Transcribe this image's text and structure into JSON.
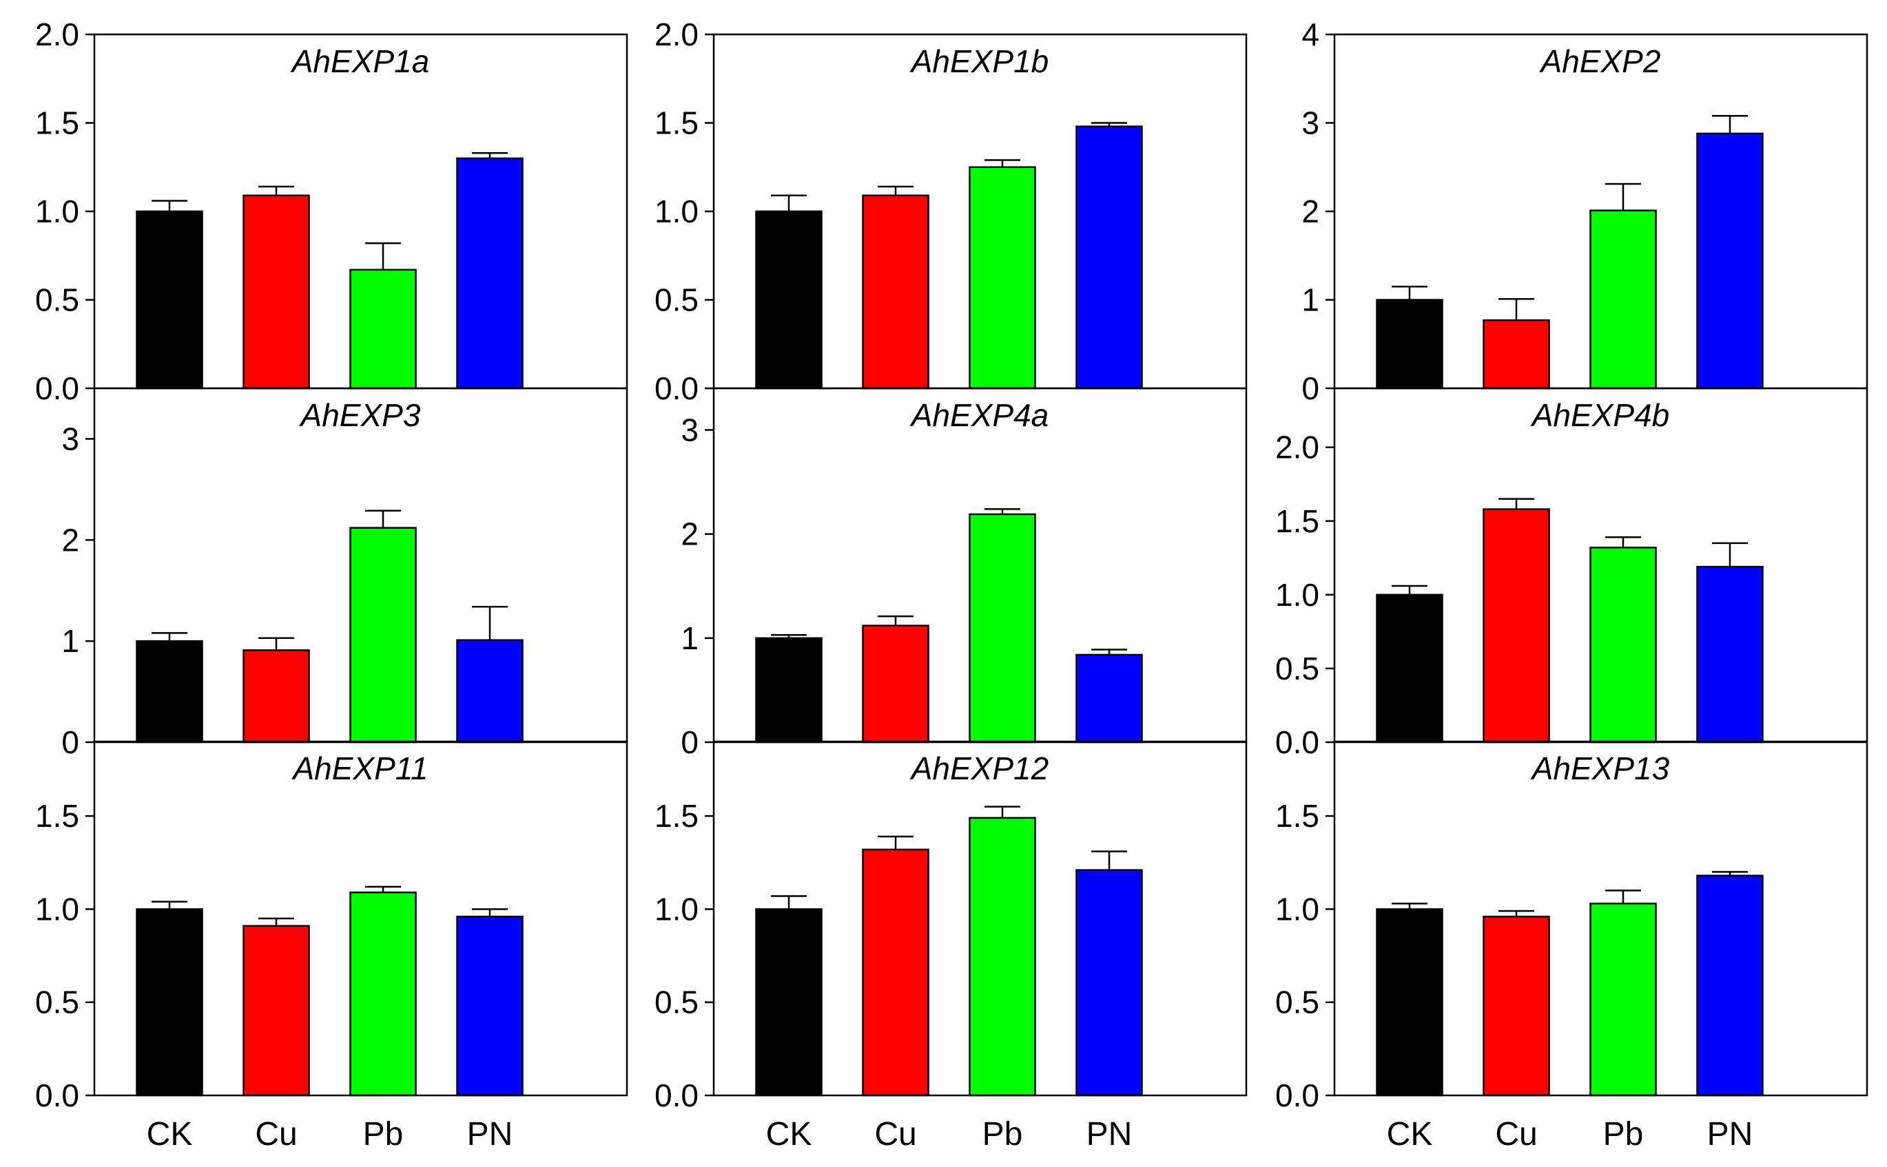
{
  "chart_data": [
    {
      "type": "bar",
      "title": "AhEXP1a",
      "categories": [
        "CK",
        "Cu",
        "Pb",
        "PN"
      ],
      "values": [
        1.0,
        1.09,
        0.67,
        1.3
      ],
      "errors": [
        0.06,
        0.05,
        0.15,
        0.03
      ],
      "ylim": [
        0,
        2.0
      ],
      "yticks": [
        0,
        0.5,
        1.0,
        1.5,
        2.0
      ],
      "ytick_labels": [
        "0.0",
        "0.5",
        "1.0",
        "1.5",
        "2.0"
      ]
    },
    {
      "type": "bar",
      "title": "AhEXP1b",
      "categories": [
        "CK",
        "Cu",
        "Pb",
        "PN"
      ],
      "values": [
        1.0,
        1.09,
        1.25,
        1.48
      ],
      "errors": [
        0.09,
        0.05,
        0.04,
        0.02
      ],
      "ylim": [
        0,
        2.0
      ],
      "yticks": [
        0,
        0.5,
        1.0,
        1.5,
        2.0
      ],
      "ytick_labels": [
        "0.0",
        "0.5",
        "1.0",
        "1.5",
        "2.0"
      ]
    },
    {
      "type": "bar",
      "title": "AhEXP2",
      "categories": [
        "CK",
        "Cu",
        "Pb",
        "PN"
      ],
      "values": [
        1.0,
        0.77,
        2.01,
        2.88
      ],
      "errors": [
        0.15,
        0.24,
        0.3,
        0.2
      ],
      "ylim": [
        0,
        4
      ],
      "yticks": [
        0,
        1,
        2,
        3,
        4
      ],
      "ytick_labels": [
        "0",
        "1",
        "2",
        "3",
        "4"
      ]
    },
    {
      "type": "bar",
      "title": "AhEXP3",
      "categories": [
        "CK",
        "Cu",
        "Pb",
        "PN"
      ],
      "values": [
        1.0,
        0.91,
        2.12,
        1.01
      ],
      "errors": [
        0.08,
        0.12,
        0.17,
        0.33
      ],
      "ylim": [
        0,
        3.5
      ],
      "yticks": [
        0,
        1,
        2,
        3
      ],
      "ytick_labels": [
        "0",
        "1",
        "2",
        "3"
      ]
    },
    {
      "type": "bar",
      "title": "AhEXP4a",
      "categories": [
        "CK",
        "Cu",
        "Pb",
        "PN"
      ],
      "values": [
        1.0,
        1.12,
        2.19,
        0.84
      ],
      "errors": [
        0.03,
        0.09,
        0.05,
        0.05
      ],
      "ylim": [
        0,
        3.4
      ],
      "yticks": [
        0,
        1,
        2,
        3
      ],
      "ytick_labels": [
        "0",
        "1",
        "2",
        "3"
      ]
    },
    {
      "type": "bar",
      "title": "AhEXP4b",
      "categories": [
        "CK",
        "Cu",
        "Pb",
        "PN"
      ],
      "values": [
        1.0,
        1.58,
        1.32,
        1.19
      ],
      "errors": [
        0.06,
        0.07,
        0.07,
        0.16
      ],
      "ylim": [
        0,
        2.4
      ],
      "yticks": [
        0,
        0.5,
        1.0,
        1.5,
        2.0
      ],
      "ytick_labels": [
        "0.0",
        "0.5",
        "1.0",
        "1.5",
        "2.0"
      ]
    },
    {
      "type": "bar",
      "title": "AhEXP11",
      "categories": [
        "CK",
        "Cu",
        "Pb",
        "PN"
      ],
      "values": [
        1.0,
        0.91,
        1.09,
        0.96
      ],
      "errors": [
        0.04,
        0.04,
        0.03,
        0.04
      ],
      "ylim": [
        0,
        1.9
      ],
      "yticks": [
        0,
        0.5,
        1.0,
        1.5
      ],
      "ytick_labels": [
        "0.0",
        "0.5",
        "1.0",
        "1.5"
      ]
    },
    {
      "type": "bar",
      "title": "AhEXP12",
      "categories": [
        "CK",
        "Cu",
        "Pb",
        "PN"
      ],
      "values": [
        1.0,
        1.32,
        1.49,
        1.21
      ],
      "errors": [
        0.07,
        0.07,
        0.06,
        0.1
      ],
      "ylim": [
        0,
        1.9
      ],
      "yticks": [
        0,
        0.5,
        1.0,
        1.5
      ],
      "ytick_labels": [
        "0.0",
        "0.5",
        "1.0",
        "1.5"
      ]
    },
    {
      "type": "bar",
      "title": "AhEXP13",
      "categories": [
        "CK",
        "Cu",
        "Pb",
        "PN"
      ],
      "values": [
        1.0,
        0.96,
        1.03,
        1.18
      ],
      "errors": [
        0.03,
        0.03,
        0.07,
        0.02
      ],
      "ylim": [
        0,
        1.9
      ],
      "yticks": [
        0,
        0.5,
        1.0,
        1.5
      ],
      "ytick_labels": [
        "0.0",
        "0.5",
        "1.0",
        "1.5"
      ]
    }
  ],
  "bar_colors": [
    "#000000",
    "#ff0000",
    "#00ff00",
    "#0000ff"
  ],
  "x_labels": [
    "CK",
    "Cu",
    "Pb",
    "PN"
  ]
}
